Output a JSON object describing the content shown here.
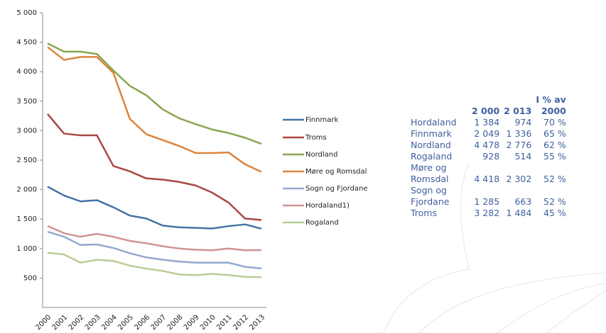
{
  "chart_data": {
    "type": "line",
    "categories": [
      "2000",
      "2001",
      "2002",
      "2003",
      "2004",
      "2005",
      "2006",
      "2007",
      "2008",
      "2009",
      "2010",
      "2011",
      "2012",
      "2013"
    ],
    "series": [
      {
        "name": "Finnmark",
        "color": "#4572a7",
        "values": [
          2049,
          1900,
          1800,
          1820,
          1700,
          1560,
          1510,
          1390,
          1360,
          1350,
          1340,
          1380,
          1410,
          1336
        ]
      },
      {
        "name": "Troms",
        "color": "#aa4643",
        "values": [
          3282,
          2950,
          2920,
          2920,
          2400,
          2310,
          2190,
          2170,
          2130,
          2070,
          1950,
          1780,
          1510,
          1484
        ]
      },
      {
        "name": "Nordland",
        "color": "#89a54e",
        "values": [
          4478,
          4340,
          4340,
          4300,
          4020,
          3760,
          3600,
          3360,
          3210,
          3110,
          3020,
          2960,
          2880,
          2776
        ]
      },
      {
        "name": "Møre og Romsdal",
        "color": "#db843d",
        "values": [
          4418,
          4200,
          4250,
          4250,
          3980,
          3200,
          2940,
          2840,
          2740,
          2620,
          2620,
          2630,
          2430,
          2302
        ]
      },
      {
        "name": "Sogn og Fjordane",
        "color": "#93a9cf",
        "values": [
          1285,
          1200,
          1060,
          1070,
          1010,
          920,
          850,
          810,
          780,
          760,
          760,
          760,
          690,
          663
        ]
      },
      {
        "name": "Hordaland1)",
        "color": "#d19392",
        "values": [
          1384,
          1260,
          1200,
          1250,
          1200,
          1130,
          1090,
          1040,
          1000,
          980,
          970,
          1000,
          970,
          974
        ]
      },
      {
        "name": "Rogaland",
        "color": "#b9cd96",
        "values": [
          928,
          900,
          760,
          810,
          790,
          710,
          660,
          620,
          560,
          550,
          570,
          550,
          520,
          514
        ]
      }
    ],
    "ylim": [
      0,
      5000
    ],
    "yticks": [
      500,
      {
        "value": 1000,
        "label": "1 000"
      },
      {
        "value": 1500,
        "label": "1 500"
      },
      {
        "value": 2000,
        "label": "2 000"
      },
      {
        "value": 2500,
        "label": "2 500"
      },
      {
        "value": 3000,
        "label": "3 000"
      },
      {
        "value": 3500,
        "label": "3 500"
      },
      {
        "value": 4000,
        "label": "4 000"
      },
      {
        "value": 4500,
        "label": "4 500"
      },
      {
        "value": 5000,
        "label": "5 000"
      }
    ],
    "grid": false,
    "legend": "right"
  },
  "table": {
    "header": [
      "",
      "2 000",
      "2 013",
      "2000"
    ],
    "header_top": "I % av",
    "rows": [
      [
        "Hordaland",
        "1 384",
        "974",
        "70 %"
      ],
      [
        "Finnmark",
        "2 049",
        "1 336",
        "65 %"
      ],
      [
        "Nordland",
        "4 478",
        "2 776",
        "62 %"
      ],
      [
        "Rogaland",
        "928",
        "514",
        "55 %"
      ],
      [
        "Møre og Romsdal",
        "4 418",
        "2 302",
        "52 %"
      ],
      [
        "Sogn og Fjordane",
        "1 285",
        "663",
        "52 %"
      ],
      [
        "Troms",
        "3 282",
        "1 484",
        "45 %"
      ]
    ]
  }
}
